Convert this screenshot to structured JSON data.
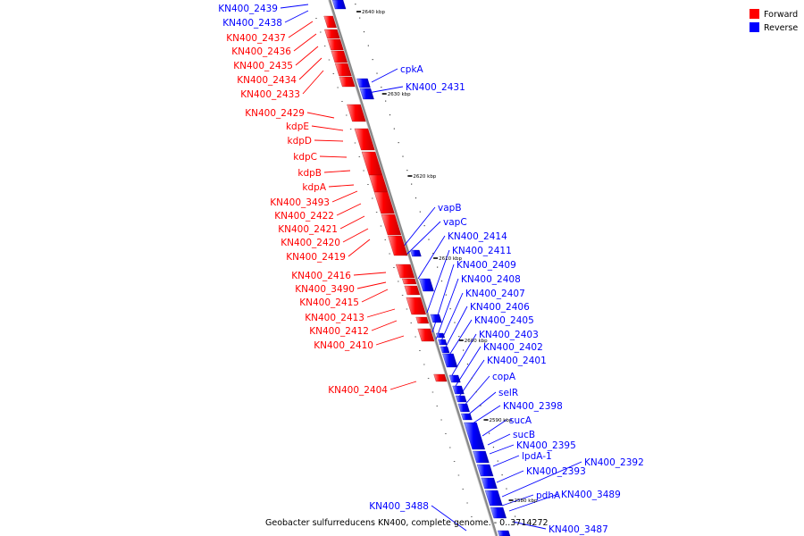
{
  "caption": "Geobacter sulfurreducens KN400, complete genome. - 0..3714272",
  "legend": [
    {
      "label": "Forward",
      "color": "#ff0000"
    },
    {
      "label": "Reverse",
      "color": "#0000ff"
    }
  ],
  "colors": {
    "forward": "#ff0000",
    "reverse": "#0000ff",
    "backbone": "#888888"
  },
  "ticks": [
    "2640 kbp",
    "2630 kbp",
    "2620 kbp",
    "2610 kbp",
    "2600 kbp",
    "2590 kbp",
    "2580 kbp"
  ],
  "forward_labels": [
    "KN400_2437",
    "KN400_2436",
    "KN400_2435",
    "KN400_2434",
    "KN400_2433",
    "KN400_2429",
    "kdpE",
    "kdpD",
    "kdpC",
    "kdpB",
    "kdpA",
    "KN400_3493",
    "KN400_2422",
    "KN400_2421",
    "KN400_2420",
    "KN400_2419",
    "KN400_2416",
    "KN400_3490",
    "KN400_2415",
    "KN400_2413",
    "KN400_2412",
    "KN400_2410",
    "KN400_2404"
  ],
  "reverse_labels_left": [
    "KN400_2439",
    "KN400_2438",
    "KN400_3488"
  ],
  "reverse_labels_right": [
    "cpkA",
    "KN400_2431",
    "vapB",
    "vapC",
    "KN400_2414",
    "KN400_2411",
    "KN400_2409",
    "KN400_2408",
    "KN400_2407",
    "KN400_2406",
    "KN400_2405",
    "KN400_2403",
    "KN400_2402",
    "KN400_2401",
    "copA",
    "selR",
    "KN400_2398",
    "sucA",
    "sucB",
    "KN400_2395",
    "lpdA-1",
    "KN400_2393",
    "KN400_2392",
    "pdhA",
    "KN400_3489",
    "KN400_3487"
  ]
}
